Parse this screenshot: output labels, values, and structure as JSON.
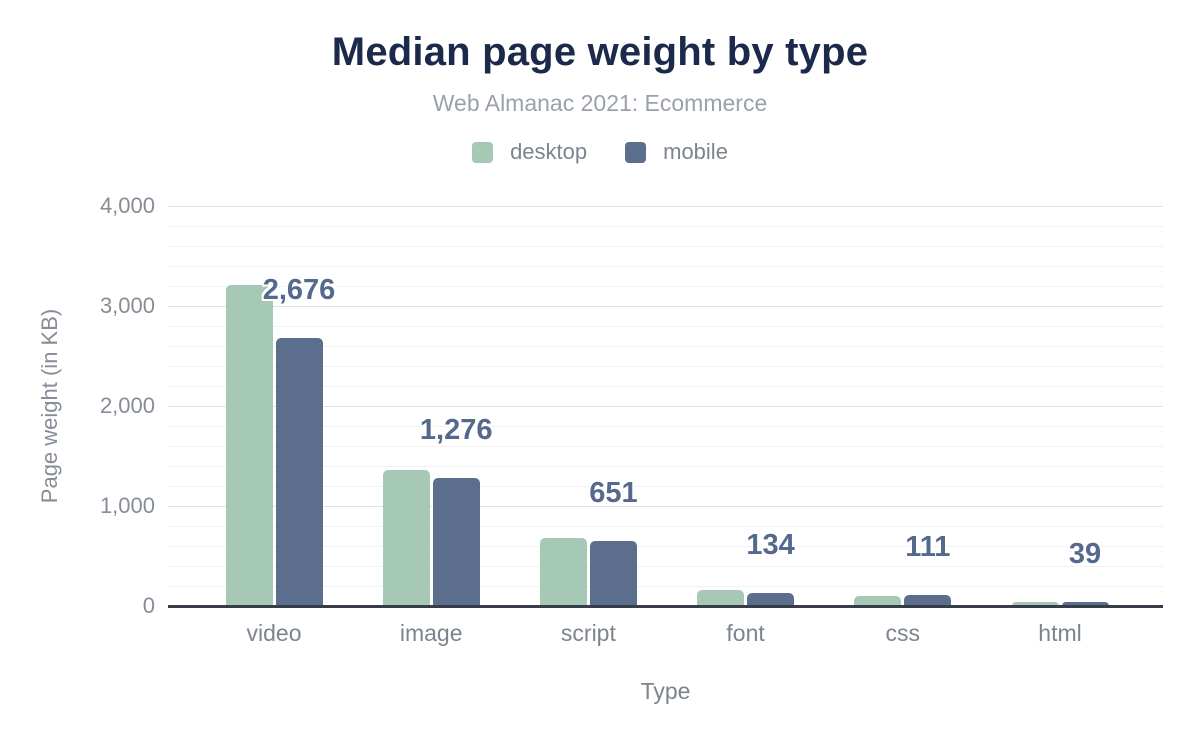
{
  "chart_data": {
    "type": "bar",
    "title": "Median page weight by type",
    "subtitle": "Web Almanac 2021: Ecommerce",
    "xlabel": "Type",
    "ylabel": "Page weight (in KB)",
    "categories": [
      "video",
      "image",
      "script",
      "font",
      "css",
      "html"
    ],
    "series": [
      {
        "name": "desktop",
        "color": "#a6c9b5",
        "values": [
          3210,
          1365,
          685,
          160,
          105,
          45
        ]
      },
      {
        "name": "mobile",
        "color": "#5c6e8e",
        "values": [
          2676,
          1276,
          651,
          134,
          111,
          39
        ]
      }
    ],
    "data_labels": [
      "2,676",
      "1,276",
      "651",
      "134",
      "111",
      "39"
    ],
    "data_labels_series": "mobile",
    "ylim": [
      0,
      4000
    ],
    "yticks": [
      {
        "value": 0,
        "label": "0"
      },
      {
        "value": 1000,
        "label": "1,000"
      },
      {
        "value": 2000,
        "label": "2,000"
      },
      {
        "value": 3000,
        "label": "3,000"
      },
      {
        "value": 4000,
        "label": "4,000"
      }
    ],
    "grid": {
      "on": true,
      "minor_step": 200,
      "major_step": 1000
    },
    "legend_position": "top",
    "colors": {
      "title": "#1b2a4a",
      "subtitle": "#9ba1ab",
      "axis_text": "#868d97",
      "category_text": "#7d848e",
      "data_label": "#55688d",
      "axis_line": "#363d49",
      "gridline_minor": "#f2f2f5",
      "gridline_major": "#e2e3e8"
    }
  }
}
